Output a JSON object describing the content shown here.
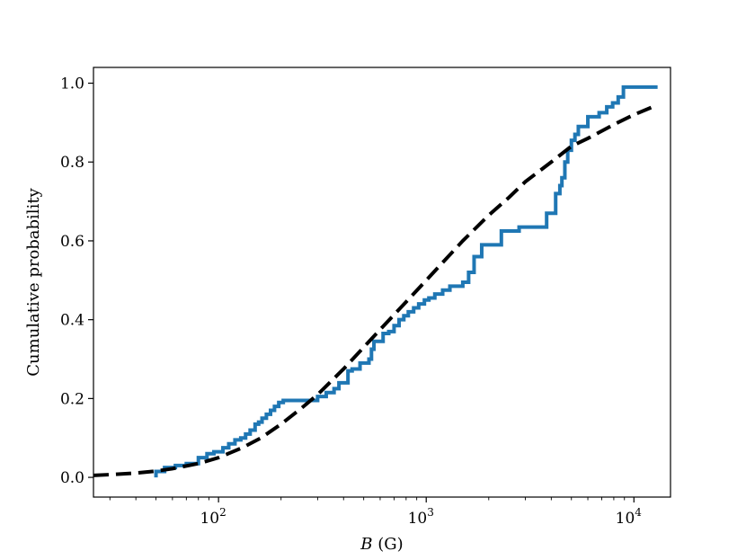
{
  "chart_data": {
    "type": "line",
    "xscale": "log",
    "xlabel_var": "B",
    "xlabel_unit": " (G)",
    "ylabel": "Cumulative probability",
    "xlim": [
      25,
      15000
    ],
    "ylim": [
      -0.05,
      1.04
    ],
    "x_ticks": [
      {
        "value": 100,
        "base": "10",
        "exp": "2"
      },
      {
        "value": 1000,
        "base": "10",
        "exp": "3"
      },
      {
        "value": 10000,
        "base": "10",
        "exp": "4"
      }
    ],
    "y_ticks": [
      {
        "value": 0.0,
        "label": "0.0"
      },
      {
        "value": 0.2,
        "label": "0.2"
      },
      {
        "value": 0.4,
        "label": "0.4"
      },
      {
        "value": 0.6,
        "label": "0.6"
      },
      {
        "value": 0.8,
        "label": "0.8"
      },
      {
        "value": 1.0,
        "label": "1.0"
      }
    ],
    "grid": false,
    "series": [
      {
        "style": "step",
        "color": "#1f77b4",
        "x": [
          50,
          50,
          55,
          62,
          70,
          80,
          88,
          95,
          105,
          112,
          120,
          128,
          135,
          142,
          150,
          156,
          162,
          170,
          178,
          186,
          195,
          205,
          300,
          330,
          360,
          380,
          420,
          440,
          480,
          530,
          545,
          560,
          620,
          660,
          700,
          740,
          780,
          820,
          870,
          920,
          980,
          1030,
          1100,
          1200,
          1300,
          1400,
          1500,
          1600,
          1700,
          1850,
          1950,
          2300,
          2800,
          3800,
          4200,
          4400,
          4500,
          4650,
          4800,
          5000,
          5200,
          5400,
          6000,
          6400,
          6800,
          7400,
          7900,
          8400,
          8900,
          9500,
          13000
        ],
        "y": [
          0.0,
          0.015,
          0.025,
          0.03,
          0.035,
          0.05,
          0.06,
          0.065,
          0.075,
          0.085,
          0.095,
          0.1,
          0.11,
          0.12,
          0.135,
          0.14,
          0.15,
          0.16,
          0.17,
          0.18,
          0.19,
          0.195,
          0.205,
          0.215,
          0.225,
          0.24,
          0.27,
          0.275,
          0.29,
          0.3,
          0.325,
          0.345,
          0.365,
          0.37,
          0.385,
          0.4,
          0.41,
          0.42,
          0.43,
          0.44,
          0.45,
          0.455,
          0.465,
          0.475,
          0.485,
          0.485,
          0.495,
          0.52,
          0.56,
          0.59,
          0.59,
          0.625,
          0.635,
          0.67,
          0.72,
          0.74,
          0.76,
          0.8,
          0.83,
          0.855,
          0.87,
          0.89,
          0.915,
          0.915,
          0.925,
          0.94,
          0.95,
          0.965,
          0.99,
          0.99,
          0.99
        ]
      },
      {
        "style": "dashed",
        "color": "#000000",
        "x": [
          25,
          30,
          40,
          50,
          60,
          80,
          100,
          130,
          160,
          200,
          250,
          300,
          400,
          500,
          600,
          800,
          1000,
          1200,
          1500,
          2000,
          2500,
          3000,
          4000,
          5000,
          6000,
          8000,
          10000,
          13000
        ],
        "y": [
          0.005,
          0.007,
          0.011,
          0.016,
          0.022,
          0.035,
          0.05,
          0.075,
          0.1,
          0.135,
          0.175,
          0.21,
          0.275,
          0.33,
          0.375,
          0.445,
          0.5,
          0.545,
          0.6,
          0.665,
          0.71,
          0.75,
          0.8,
          0.84,
          0.86,
          0.895,
          0.92,
          0.945
        ]
      }
    ]
  }
}
